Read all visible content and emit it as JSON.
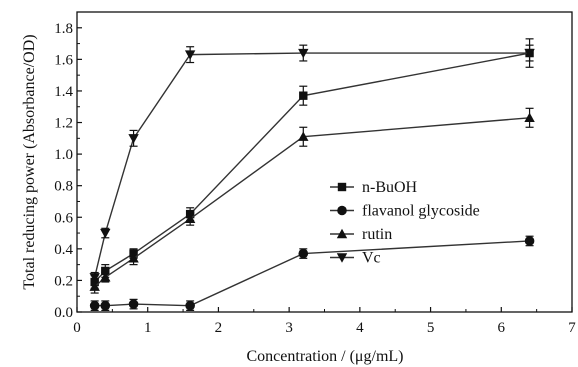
{
  "chart_data": {
    "type": "line",
    "xlabel": "Concentration / (μg/mL)",
    "ylabel": "Total reducing power (Absorbance/OD)",
    "xlim": [
      0,
      7
    ],
    "ylim": [
      0,
      1.9
    ],
    "xticks": [
      "0",
      "1",
      "2",
      "3",
      "4",
      "5",
      "6",
      "7"
    ],
    "yticks": [
      "0.0",
      "0.2",
      "0.4",
      "0.6",
      "0.8",
      "1.0",
      "1.2",
      "1.4",
      "1.6",
      "1.8"
    ],
    "xtick_values": [
      0,
      1,
      2,
      3,
      4,
      5,
      6,
      7
    ],
    "ytick_values": [
      0,
      0.2,
      0.4,
      0.6,
      0.8,
      1.0,
      1.2,
      1.4,
      1.6,
      1.8
    ],
    "grid": false,
    "legend_position": "right",
    "x": [
      0.25,
      0.4,
      0.8,
      1.6,
      3.2,
      6.4
    ],
    "series": [
      {
        "name": "n-BuOH",
        "marker": "square",
        "values": [
          0.19,
          0.26,
          0.37,
          0.62,
          1.37,
          1.64
        ],
        "errors": [
          0.04,
          0.04,
          0.03,
          0.04,
          0.06,
          0.09
        ]
      },
      {
        "name": "flavanol glycoside",
        "marker": "circle",
        "values": [
          0.04,
          0.04,
          0.05,
          0.04,
          0.37,
          0.45
        ],
        "errors": [
          0.03,
          0.03,
          0.03,
          0.03,
          0.03,
          0.03
        ]
      },
      {
        "name": "rutin",
        "marker": "triangle-up",
        "values": [
          0.16,
          0.22,
          0.34,
          0.59,
          1.11,
          1.23
        ],
        "errors": [
          0.04,
          0.03,
          0.04,
          0.04,
          0.06,
          0.06
        ]
      },
      {
        "name": "Vc",
        "marker": "triangle-down",
        "values": [
          0.22,
          0.5,
          1.1,
          1.63,
          1.64,
          1.64
        ],
        "errors": [
          0.03,
          0.03,
          0.05,
          0.05,
          0.05,
          0.05
        ]
      }
    ]
  }
}
